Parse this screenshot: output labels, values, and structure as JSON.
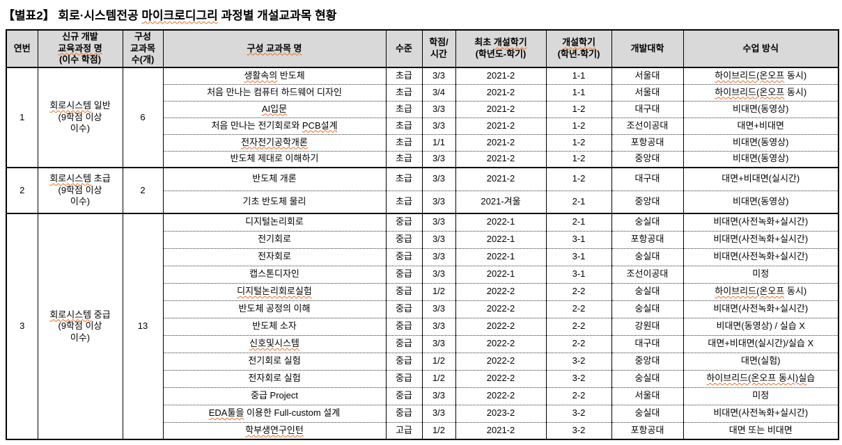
{
  "colors": {
    "spellcheck_underline": "#ed6c1e",
    "header_background": "#d9d9d9",
    "table_border": "#000000"
  },
  "title": {
    "prefix": "【별표2】 회로·시스템전공 ",
    "wavy": "마이크로디그리",
    "suffix": " 과정별 개설교과목 현황"
  },
  "table": {
    "columns": [
      {
        "id": "no",
        "label_lines": [
          [
            {
              "t": "연번"
            }
          ]
        ]
      },
      {
        "id": "program",
        "label_lines": [
          [
            {
              "t": "신규 개발"
            }
          ],
          [
            {
              "t": "교육과정 명",
              "w": true
            }
          ],
          [
            {
              "t": "(이수 학점)"
            }
          ]
        ]
      },
      {
        "id": "count",
        "label_lines": [
          [
            {
              "t": "구성"
            }
          ],
          [
            {
              "t": "교과목"
            }
          ],
          [
            {
              "t": "수(개)"
            }
          ]
        ]
      },
      {
        "id": "course",
        "label_lines": [
          [
            {
              "t": "구성 교과목 명",
              "w": true
            }
          ]
        ]
      },
      {
        "id": "level",
        "label_lines": [
          [
            {
              "t": "수준"
            }
          ]
        ]
      },
      {
        "id": "credit",
        "label_lines": [
          [
            {
              "t": "학점/"
            }
          ],
          [
            {
              "t": "시간"
            }
          ]
        ]
      },
      {
        "id": "first_term",
        "label_lines": [
          [
            {
              "t": "최초 "
            },
            {
              "t": "개설학기",
              "w": true
            }
          ],
          [
            {
              "t": "(학년도-학기)"
            }
          ]
        ]
      },
      {
        "id": "term",
        "label_lines": [
          [
            {
              "t": "개설학기",
              "w": true
            }
          ],
          [
            {
              "t": "(학년-학기)"
            }
          ]
        ]
      },
      {
        "id": "univ",
        "label_lines": [
          [
            {
              "t": "개발대학"
            }
          ]
        ]
      },
      {
        "id": "method",
        "label_lines": [
          [
            {
              "t": "수업 방식"
            }
          ]
        ]
      }
    ],
    "groups": [
      {
        "no": "1",
        "program_lines": [
          [
            {
              "t": "회로시스템",
              "w": true
            },
            {
              "t": " 일반"
            }
          ],
          [
            {
              "t": "(9학점 이상"
            }
          ],
          [
            {
              "t": "이수)"
            }
          ]
        ],
        "count": "6",
        "courses": [
          {
            "name": [
              {
                "t": "생활속의",
                "w": true
              },
              {
                "t": " 반도체"
              }
            ],
            "level": "초급",
            "credit": "3/3",
            "first": "2021-2",
            "term": "1-1",
            "univ": "서울대",
            "method": [
              {
                "t": "하이브리드(온오프",
                "w": true
              },
              {
                "t": " 동시)"
              }
            ]
          },
          {
            "name": [
              {
                "t": "처음 만나는 컴퓨터 하드웨어 디자인"
              }
            ],
            "level": "초급",
            "credit": "3/4",
            "first": "2021-2",
            "term": "1-1",
            "univ": "서울대",
            "method": [
              {
                "t": "하이브리드(온오프",
                "w": true
              },
              {
                "t": " 동시)"
              }
            ]
          },
          {
            "name": [
              {
                "t": "AI입문",
                "w": true
              }
            ],
            "level": "초급",
            "credit": "3/3",
            "first": "2021-2",
            "term": "1-2",
            "univ": "대구대",
            "method": [
              {
                "t": "비대면(동영상)"
              }
            ]
          },
          {
            "name": [
              {
                "t": "처음 만나는 전기회로와 "
              },
              {
                "t": "PCB설계",
                "w": true
              }
            ],
            "level": "초급",
            "credit": "3/3",
            "first": "2021-2",
            "term": "1-2",
            "univ": "조선이공대",
            "method": [
              {
                "t": "대면+비대면"
              }
            ]
          },
          {
            "name": [
              {
                "t": "전자전기공학개론",
                "w": true
              }
            ],
            "level": "초급",
            "credit": "1/1",
            "first": "2021-2",
            "term": "1-2",
            "univ": "포항공대",
            "method": [
              {
                "t": "비대면(동영상)"
              }
            ]
          },
          {
            "name": [
              {
                "t": "반도체 제대로 이해하기"
              }
            ],
            "level": "초급",
            "credit": "3/3",
            "first": "2021-2",
            "term": "1-2",
            "univ": "중앙대",
            "method": [
              {
                "t": "비대면(동영상)"
              }
            ]
          }
        ]
      },
      {
        "no": "2",
        "program_lines": [
          [
            {
              "t": "회로시스템",
              "w": true
            },
            {
              "t": " 초급"
            }
          ],
          [
            {
              "t": "(9학점 이상"
            }
          ],
          [
            {
              "t": "이수)"
            }
          ]
        ],
        "count": "2",
        "courses": [
          {
            "name": [
              {
                "t": "반도체 개론"
              }
            ],
            "level": "초급",
            "credit": "3/3",
            "first": "2021-2",
            "term": "1-2",
            "univ": "대구대",
            "method": [
              {
                "t": "대면+비대면(실시간)"
              }
            ]
          },
          {
            "name": [
              {
                "t": "기초 반도체 물리"
              }
            ],
            "level": "초급",
            "credit": "3/3",
            "first": "2021-겨울",
            "term": "2-1",
            "univ": "중앙대",
            "method": [
              {
                "t": "비대면(동영상)"
              }
            ]
          }
        ]
      },
      {
        "no": "3",
        "program_lines": [
          [
            {
              "t": "회로시스템",
              "w": true
            },
            {
              "t": " 중급"
            }
          ],
          [
            {
              "t": "(9학점 이상"
            }
          ],
          [
            {
              "t": "이수)"
            }
          ]
        ],
        "count": "13",
        "courses": [
          {
            "name": [
              {
                "t": "디지털논리회로"
              }
            ],
            "level": "중급",
            "credit": "3/3",
            "first": "2022-1",
            "term": "2-1",
            "univ": "숭실대",
            "method": [
              {
                "t": "비대면(사전녹화+실시간)"
              }
            ]
          },
          {
            "name": [
              {
                "t": "전기회로"
              }
            ],
            "level": "중급",
            "credit": "3/3",
            "first": "2022-1",
            "term": "3-1",
            "univ": "포항공대",
            "method": [
              {
                "t": "비대면(사전녹화+실시간)"
              }
            ]
          },
          {
            "name": [
              {
                "t": "전자회로"
              }
            ],
            "level": "중급",
            "credit": "3/3",
            "first": "2022-1",
            "term": "3-1",
            "univ": "숭실대",
            "method": [
              {
                "t": "비대면(사전녹화+실시간)"
              }
            ]
          },
          {
            "name": [
              {
                "t": "캡스톤디자인"
              }
            ],
            "level": "중급",
            "credit": "3/3",
            "first": "2022-1",
            "term": "3-1",
            "univ": "조선이공대",
            "method": [
              {
                "t": "미정"
              }
            ]
          },
          {
            "name": [
              {
                "t": "디지털논리회로실험",
                "w": true
              }
            ],
            "level": "중급",
            "credit": "1/2",
            "first": "2022-2",
            "term": "2-2",
            "univ": "숭실대",
            "method": [
              {
                "t": "하이브리드(온오프",
                "w": true
              },
              {
                "t": " 동시)"
              }
            ]
          },
          {
            "name": [
              {
                "t": "반도체 공정의 이해"
              }
            ],
            "level": "중급",
            "credit": "3/3",
            "first": "2022-2",
            "term": "2-2",
            "univ": "숭실대",
            "method": [
              {
                "t": "비대면(사전녹화+실시간)"
              }
            ]
          },
          {
            "name": [
              {
                "t": "반도체 소자"
              }
            ],
            "level": "중급",
            "credit": "3/3",
            "first": "2022-2",
            "term": "2-2",
            "univ": "강원대",
            "method": [
              {
                "t": "비대면(동영상) / 실습 X"
              }
            ]
          },
          {
            "name": [
              {
                "t": "신호및시스템",
                "w": true
              }
            ],
            "level": "중급",
            "credit": "3/3",
            "first": "2022-2",
            "term": "2-2",
            "univ": "대구대",
            "method": [
              {
                "t": "대면+비대면(실시간)/실습 X"
              }
            ]
          },
          {
            "name": [
              {
                "t": "전기회로 실험"
              }
            ],
            "level": "중급",
            "credit": "1/2",
            "first": "2022-2",
            "term": "3-2",
            "univ": "중앙대",
            "method": [
              {
                "t": "대면(실험)"
              }
            ]
          },
          {
            "name": [
              {
                "t": "전자회로 실험"
              }
            ],
            "level": "중급",
            "credit": "1/2",
            "first": "2022-2",
            "term": "3-2",
            "univ": "숭실대",
            "method": [
              {
                "t": "하이브리드(온오프 동시)실",
                "w": true
              },
              {
                "t": "습"
              }
            ]
          },
          {
            "name": [
              {
                "t": "중급 Project"
              }
            ],
            "level": "중급",
            "credit": "3/3",
            "first": "2022-2",
            "term": "2-2",
            "univ": "서울대",
            "method": [
              {
                "t": "미정"
              }
            ]
          },
          {
            "name": [
              {
                "t": "EDA툴을",
                "w": true
              },
              {
                "t": " 이용한 Full-custom 설계"
              }
            ],
            "level": "중급",
            "credit": "3/3",
            "first": "2023-2",
            "term": "3-2",
            "univ": "숭실대",
            "method": [
              {
                "t": "비대면(사전녹화+실시간)"
              }
            ]
          },
          {
            "name": [
              {
                "t": "학부생연구인턴",
                "w": true
              }
            ],
            "level": "고급",
            "credit": "1/2",
            "first": "2021-2",
            "term": "3-2",
            "univ": "포항공대",
            "method": [
              {
                "t": "대면 또는 비대면"
              }
            ]
          }
        ]
      }
    ]
  }
}
